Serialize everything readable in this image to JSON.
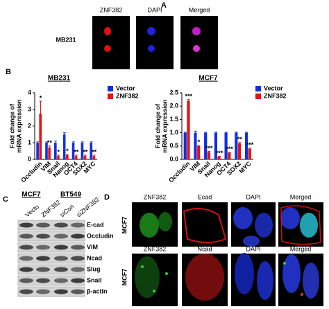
{
  "panels": {
    "a": {
      "label": "A",
      "columns": [
        "ZNF382",
        "DAPI",
        "Merged"
      ],
      "row": "MB231"
    },
    "b": {
      "label": "B"
    },
    "c": {
      "label": "C",
      "groups": [
        "MCF7",
        "BT549"
      ],
      "lanes": [
        "Vecto",
        "ZNF382",
        "siCon",
        "siZNF382"
      ],
      "rows": [
        "E-cad",
        "Occludin",
        "VIM",
        "Ncad",
        "Slug",
        "Snail",
        "β-actin"
      ]
    },
    "d": {
      "label": "D",
      "row1": [
        "ZNF382",
        "Ecad",
        "DAPI",
        "Merged"
      ],
      "row2": [
        "ZNF382",
        "Ncad",
        "DAPI",
        "Merged"
      ],
      "rows": [
        "MCF7",
        "MCF7"
      ]
    }
  },
  "chart_data": [
    {
      "type": "bar",
      "title": "MB231",
      "y_label": [
        "Fold change of",
        "mRNA expression"
      ],
      "categories": [
        "Occludin",
        "VIM",
        "Snail",
        "Nanog",
        "OCT4",
        "SOX2",
        "MYC"
      ],
      "series": [
        {
          "name": "Vector",
          "color": "#1030e0",
          "values": [
            1.0,
            1.0,
            1.0,
            1.5,
            1.0,
            1.0,
            1.0
          ],
          "errors": [
            0.05,
            0.05,
            0.1,
            0.1,
            0.05,
            0.05,
            0.05
          ]
        },
        {
          "name": "ZNF382",
          "color": "#e81010",
          "values": [
            2.75,
            0.7,
            0.2,
            0.25,
            0.2,
            0.2,
            0.2
          ],
          "errors": [
            0.75,
            0.1,
            0.05,
            0.05,
            0.05,
            0.05,
            0.05
          ]
        }
      ],
      "annotations": [
        "*",
        "**",
        "*",
        "*",
        "**",
        "**",
        "**"
      ],
      "ylim": [
        0,
        4
      ],
      "yticks": [
        0,
        1,
        2,
        3,
        4
      ],
      "legend": "top-right"
    },
    {
      "type": "bar",
      "title": "MCF7",
      "y_label": [
        "Fold change of",
        "mRNA expression"
      ],
      "categories": [
        "Occludin",
        "VIM",
        "Snail",
        "Nanog",
        "OCT4",
        "SOX2",
        "MYC"
      ],
      "series": [
        {
          "name": "Vector",
          "color": "#1030e0",
          "values": [
            1.0,
            1.0,
            1.0,
            1.0,
            1.0,
            1.0,
            1.0
          ],
          "errors": [
            0.02,
            0.06,
            0.02,
            0.02,
            0.02,
            0.02,
            0.02
          ]
        },
        {
          "name": "ZNF382",
          "color": "#e81010",
          "values": [
            2.2,
            0.5,
            0.28,
            0.1,
            0.25,
            0.6,
            0.4
          ],
          "errors": [
            0.05,
            0.03,
            0.02,
            0.02,
            0.02,
            0.03,
            0.02
          ]
        }
      ],
      "annotations": [
        "***",
        "*",
        "***",
        "***",
        "***",
        "**",
        "***"
      ],
      "ylim": [
        0,
        2.5
      ],
      "yticks": [
        {
          "value": 0,
          "label": "0.0"
        },
        {
          "value": 0.5,
          "label": "0.5"
        },
        {
          "value": 1,
          "label": "1.0"
        },
        {
          "value": 1.5,
          "label": "1.5"
        },
        {
          "value": 2,
          "label": "2.0"
        },
        {
          "value": 2.5,
          "label": "2.5"
        }
      ],
      "legend": "top-right"
    }
  ]
}
